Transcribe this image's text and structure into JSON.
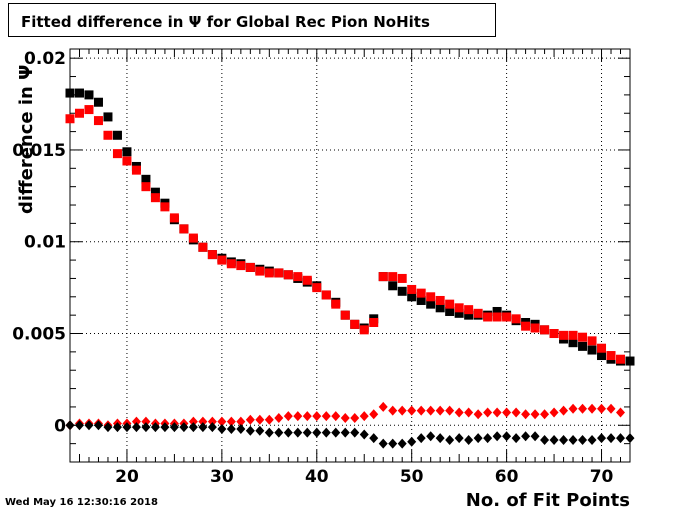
{
  "chart_data": {
    "type": "scatter",
    "title": "Fitted difference in  Ψ  for Global Rec Pion NoHits",
    "xlabel": "No. of Fit Points",
    "ylabel": "difference in  Ψ",
    "xlim": [
      14,
      73
    ],
    "ylim": [
      -0.002,
      0.0205
    ],
    "xticks": [
      20,
      30,
      40,
      50,
      60,
      70
    ],
    "xtick_labels": [
      "20",
      "30",
      "40",
      "50",
      "60",
      "70"
    ],
    "yticks": [
      0,
      0.005,
      0.01,
      0.015,
      0.02
    ],
    "ytick_labels": [
      "0",
      "0.005",
      "0.01",
      "0.015",
      "0.02"
    ],
    "grid": true,
    "series": [
      {
        "marker": "square",
        "color": "#000000",
        "x": [
          14,
          15,
          16,
          17,
          18,
          19,
          20,
          21,
          22,
          23,
          24,
          25,
          26,
          27,
          28,
          29,
          30,
          31,
          32,
          33,
          34,
          35,
          36,
          37,
          38,
          39,
          40,
          41,
          42,
          43,
          44,
          45,
          46,
          47,
          48,
          49,
          50,
          51,
          52,
          53,
          54,
          55,
          56,
          57,
          58,
          59,
          60,
          61,
          62,
          63,
          64,
          65,
          66,
          67,
          68,
          69,
          70,
          71,
          72,
          73
        ],
        "y": [
          0.0181,
          0.0181,
          0.018,
          0.0176,
          0.0168,
          0.0158,
          0.0149,
          0.0141,
          0.0134,
          0.0127,
          0.0121,
          0.0112,
          0.0107,
          0.0101,
          0.0097,
          0.0093,
          0.0091,
          0.0089,
          0.0088,
          0.0086,
          0.0085,
          0.0084,
          0.0083,
          0.0082,
          0.008,
          0.0078,
          0.0076,
          0.0071,
          0.0067,
          0.006,
          0.0055,
          0.0053,
          0.0058,
          0.0081,
          0.0076,
          0.0073,
          0.007,
          0.0068,
          0.0066,
          0.0064,
          0.0062,
          0.0061,
          0.006,
          0.006,
          0.006,
          0.0062,
          0.006,
          0.0057,
          0.0056,
          0.0055,
          0.0052,
          0.005,
          0.0047,
          0.0045,
          0.0043,
          0.0041,
          0.0038,
          0.0036,
          0.0035,
          0.0035
        ]
      },
      {
        "marker": "square",
        "color": "#ff0000",
        "x": [
          14,
          15,
          16,
          17,
          18,
          19,
          20,
          21,
          22,
          23,
          24,
          25,
          26,
          27,
          28,
          29,
          30,
          31,
          32,
          33,
          34,
          35,
          36,
          37,
          38,
          39,
          40,
          41,
          42,
          43,
          44,
          45,
          46,
          47,
          48,
          49,
          50,
          51,
          52,
          53,
          54,
          55,
          56,
          57,
          58,
          59,
          60,
          61,
          62,
          63,
          64,
          65,
          66,
          67,
          68,
          69,
          70,
          71,
          72
        ],
        "y": [
          0.0167,
          0.017,
          0.0172,
          0.0166,
          0.0158,
          0.0148,
          0.0144,
          0.0139,
          0.013,
          0.0124,
          0.0119,
          0.0113,
          0.0107,
          0.0102,
          0.0097,
          0.0093,
          0.009,
          0.0088,
          0.0087,
          0.0086,
          0.0084,
          0.0083,
          0.0083,
          0.0082,
          0.0081,
          0.0079,
          0.0075,
          0.0071,
          0.0066,
          0.006,
          0.0055,
          0.0052,
          0.0056,
          0.0081,
          0.0081,
          0.008,
          0.0074,
          0.0072,
          0.007,
          0.0068,
          0.0066,
          0.0064,
          0.0063,
          0.0061,
          0.0059,
          0.0059,
          0.0059,
          0.0058,
          0.0054,
          0.0053,
          0.0052,
          0.005,
          0.0049,
          0.0049,
          0.0048,
          0.0046,
          0.0042,
          0.0038,
          0.0036
        ]
      },
      {
        "marker": "diamond",
        "color": "#ff0000",
        "x": [
          14,
          15,
          16,
          17,
          18,
          19,
          20,
          21,
          22,
          23,
          24,
          25,
          26,
          27,
          28,
          29,
          30,
          31,
          32,
          33,
          34,
          35,
          36,
          37,
          38,
          39,
          40,
          41,
          42,
          43,
          44,
          45,
          46,
          47,
          48,
          49,
          50,
          51,
          52,
          53,
          54,
          55,
          56,
          57,
          58,
          59,
          60,
          61,
          62,
          63,
          64,
          65,
          66,
          67,
          68,
          69,
          70,
          71,
          72
        ],
        "y": [
          0.0,
          0.0001,
          0.0001,
          0.0001,
          0.0,
          0.0001,
          0.0001,
          0.0002,
          0.0002,
          0.0001,
          0.0001,
          0.0001,
          0.0001,
          0.0002,
          0.0002,
          0.0002,
          0.0002,
          0.0002,
          0.0002,
          0.0003,
          0.0003,
          0.0003,
          0.0004,
          0.0005,
          0.0005,
          0.0005,
          0.0005,
          0.0005,
          0.0005,
          0.0004,
          0.0004,
          0.0005,
          0.0006,
          0.001,
          0.0008,
          0.0008,
          0.0008,
          0.0008,
          0.0008,
          0.0008,
          0.0008,
          0.0007,
          0.0007,
          0.0006,
          0.0007,
          0.0007,
          0.0007,
          0.0007,
          0.0006,
          0.0006,
          0.0006,
          0.0007,
          0.0008,
          0.0009,
          0.0009,
          0.0009,
          0.0009,
          0.0009,
          0.0007
        ]
      },
      {
        "marker": "diamond",
        "color": "#000000",
        "x": [
          14,
          15,
          16,
          17,
          18,
          19,
          20,
          21,
          22,
          23,
          24,
          25,
          26,
          27,
          28,
          29,
          30,
          31,
          32,
          33,
          34,
          35,
          36,
          37,
          38,
          39,
          40,
          41,
          42,
          43,
          44,
          45,
          46,
          47,
          48,
          49,
          50,
          51,
          52,
          53,
          54,
          55,
          56,
          57,
          58,
          59,
          60,
          61,
          62,
          63,
          64,
          65,
          66,
          67,
          68,
          69,
          70,
          71,
          72,
          73
        ],
        "y": [
          0.0,
          0.0,
          0.0,
          0.0,
          -0.0001,
          -0.0001,
          -0.0001,
          -0.0001,
          -0.0001,
          -0.0001,
          -0.0001,
          -0.0001,
          -0.0001,
          -0.0001,
          -0.0001,
          -0.0001,
          -0.0002,
          -0.0002,
          -0.0002,
          -0.0003,
          -0.0003,
          -0.0004,
          -0.0004,
          -0.0004,
          -0.0004,
          -0.0004,
          -0.0004,
          -0.0004,
          -0.0004,
          -0.0004,
          -0.0004,
          -0.0005,
          -0.0007,
          -0.001,
          -0.001,
          -0.001,
          -0.0009,
          -0.0007,
          -0.0006,
          -0.0007,
          -0.0008,
          -0.0007,
          -0.0008,
          -0.0007,
          -0.0007,
          -0.0006,
          -0.0006,
          -0.0007,
          -0.0006,
          -0.0006,
          -0.0008,
          -0.0008,
          -0.0008,
          -0.0008,
          -0.0008,
          -0.0008,
          -0.0007,
          -0.0007,
          -0.0007,
          -0.0007
        ]
      }
    ]
  },
  "footer": {
    "datestamp": "Wed May 16 12:30:16 2018"
  }
}
